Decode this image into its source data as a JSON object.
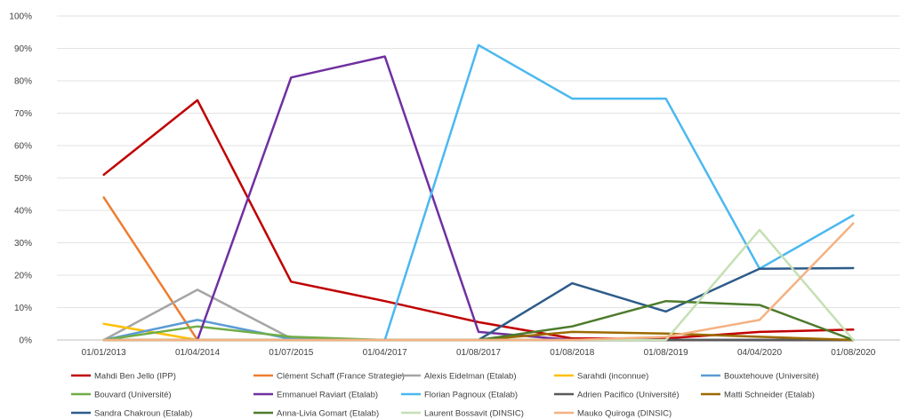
{
  "chart_data": {
    "type": "line",
    "title": "",
    "xlabel": "",
    "ylabel": "",
    "ylim": [
      0,
      100
    ],
    "y_ticks": [
      "0%",
      "10%",
      "20%",
      "30%",
      "40%",
      "50%",
      "60%",
      "70%",
      "80%",
      "90%",
      "100%"
    ],
    "categories": [
      "01/01/2013",
      "01/04/2014",
      "01/07/2015",
      "01/04/2017",
      "01/08/2017",
      "01/08/2018",
      "01/08/2019",
      "04/04/2020",
      "01/08/2020"
    ],
    "grid": true,
    "legend_position": "bottom",
    "series": [
      {
        "name": "Mahdi Ben Jello (IPP)",
        "color": "#c00000",
        "values": [
          51,
          74,
          18,
          12,
          5.5,
          0.5,
          0.5,
          2.5,
          3.2
        ]
      },
      {
        "name": "Clément Schaff (France Strategie)",
        "color": "#ed7d31",
        "values": [
          44,
          0,
          0,
          0,
          0,
          0,
          0,
          0,
          0
        ]
      },
      {
        "name": "Alexis Eidelman (Etalab)",
        "color": "#a5a5a5",
        "values": [
          0,
          15.5,
          0.5,
          0,
          0,
          0,
          0,
          0,
          0
        ]
      },
      {
        "name": "Sarahdi (inconnue)",
        "color": "#ffc000",
        "values": [
          5,
          0,
          0,
          0,
          0,
          0,
          0,
          0,
          0
        ]
      },
      {
        "name": "Bouxtehouve (Université)",
        "color": "#5b9bd5",
        "values": [
          0,
          6.2,
          0.3,
          0,
          0,
          0,
          0,
          0,
          0
        ]
      },
      {
        "name": "Bouvard (Université)",
        "color": "#70ad47",
        "values": [
          0,
          4.2,
          1,
          0,
          0,
          0,
          0,
          0,
          0
        ]
      },
      {
        "name": "Emmanuel Raviart (Etalab)",
        "color": "#7030a0",
        "values": [
          0,
          0,
          81,
          87.5,
          2.5,
          0,
          0,
          0,
          0
        ]
      },
      {
        "name": "Florian Pagnoux (Etalab)",
        "color": "#4bb8f0",
        "values": [
          0,
          0,
          0,
          0,
          91,
          74.5,
          74.5,
          22,
          38.5
        ]
      },
      {
        "name": "Adrien Pacifico (Université)",
        "color": "#595959",
        "values": [
          0,
          0,
          0,
          0,
          0,
          0,
          0,
          0,
          0
        ]
      },
      {
        "name": "Matti Schneider (Etalab)",
        "color": "#9c6a00",
        "values": [
          0,
          0,
          0,
          0,
          0,
          2.5,
          2,
          1,
          0
        ]
      },
      {
        "name": "Sandra Chakroun (Etalab)",
        "color": "#2e5c8a",
        "values": [
          0,
          0,
          0,
          0,
          0,
          17.5,
          8.8,
          22,
          22.2
        ]
      },
      {
        "name": "Anna-Livia Gomart (Etalab)",
        "color": "#4d7b2b",
        "values": [
          0,
          0,
          0,
          0,
          0,
          4.2,
          12,
          10.8,
          0
        ]
      },
      {
        "name": "Laurent Bossavit (DINSIC)",
        "color": "#c5e0b4",
        "values": [
          0,
          0,
          0,
          0,
          0,
          0,
          0,
          34,
          0
        ]
      },
      {
        "name": "Mauko Quiroga (DINSIC)",
        "color": "#f4b183",
        "values": [
          0,
          0,
          0,
          0,
          0,
          0,
          1,
          6.2,
          36
        ]
      }
    ]
  }
}
